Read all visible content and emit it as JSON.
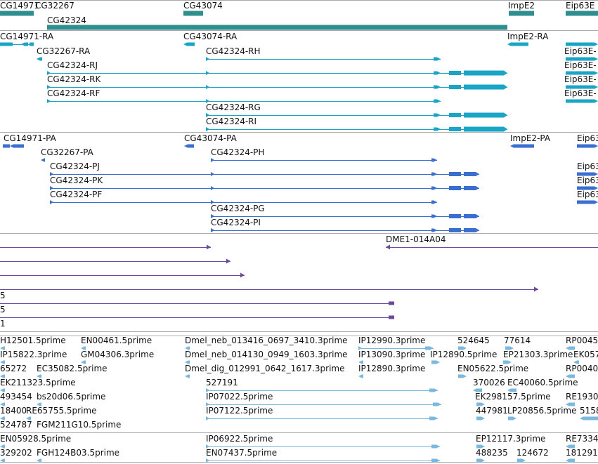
{
  "colors": {
    "gene": "#2f8f8f",
    "rna": "#1aa5c6",
    "protein": "#3a6fd0",
    "clone": "#6a4a9a",
    "est": "#7ab8de",
    "divider": "#aaaaaa"
  },
  "gene_track": {
    "labels": [
      "CG14971",
      "CG32267",
      "CG43074",
      "CG42324",
      "ImpE2",
      "Eip63E"
    ]
  },
  "rna_track": {
    "labels": [
      "CG14971-RA",
      "CG43074-RA",
      "ImpE2-RA",
      "CG32267-RA",
      "CG42324-RH",
      "CG42324-RJ",
      "CG42324-RK",
      "CG42324-RF",
      "CG42324-RG",
      "CG42324-RI",
      "Eip63E-",
      "Eip63E-",
      "Eip63E-",
      "Eip63E-"
    ]
  },
  "protein_track": {
    "labels": [
      "CG14971-PA",
      "CG43074-PA",
      "ImpE2-PA",
      "CG32267-PA",
      "CG42324-PH",
      "CG42324-PJ",
      "CG42324-PK",
      "CG42324-PF",
      "CG42324-PG",
      "CG42324-PI",
      "Eip63",
      "Eip63",
      "Eip63",
      "Eip63"
    ]
  },
  "clone_track": {
    "labels": [
      "DME1-014A04",
      "5",
      "5",
      "1"
    ]
  },
  "est_track": {
    "labels": [
      "H12501.5prime",
      "EN00461.5prime",
      "Dmel_neb_013416_0697_3410.3prime",
      "IP12990.3prime",
      "524645",
      "77614",
      "RP0045",
      "IP15822.3prime",
      "GM04306.3prime",
      "Dmel_neb_014130_0949_1603.3prime",
      "IP13090.3prime",
      "IP12890.5prime",
      "EP21303.3prime",
      "EK057",
      "65272",
      "EC35082.5prime",
      "Dmel_dig_012991_0642_1617.3prime",
      "IP12890.3prime",
      "EN05622.5prime",
      "RP0040",
      "EK211323.5prime",
      "527191",
      "370026",
      "EC40060.5prime",
      "493454",
      "bs20d06.5prime",
      "IP07022.5prime",
      "EK298157.5prime",
      "RE1930",
      "18400",
      "RE65755.5prime",
      "IP07122.5prime",
      "447981",
      "LP20856.5prime",
      "5158",
      "524787",
      "FGM211G10.5prime",
      "EN05928.5prime",
      "IP06922.5prime",
      "EP12117.3prime",
      "RE7334",
      "329202",
      "FGH124B03.5prime",
      "EN07437.5prime",
      "488235",
      "124672",
      "181291"
    ]
  }
}
